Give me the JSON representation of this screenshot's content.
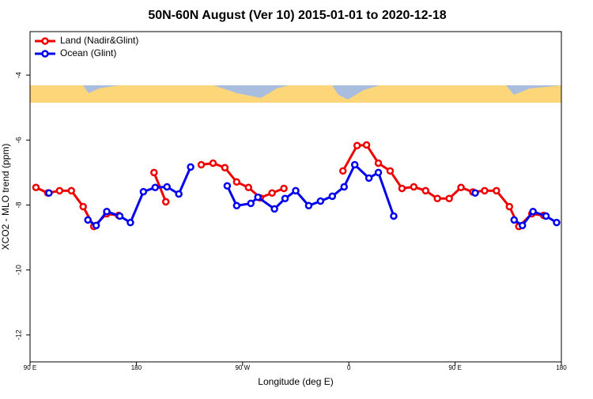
{
  "chart_data": {
    "type": "line",
    "title": "50N-60N August (Ver 10)   2015-01-01 to 2020-12-18",
    "x_label": "Longitude (deg E)",
    "y_label": "XCO2 - MLO trend (ppm)",
    "xlim": [
      90,
      540
    ],
    "ylim": [
      -12.83,
      -2.66
    ],
    "xticks": [
      {
        "value": 90,
        "label": "90 E"
      },
      180,
      {
        "value": 270,
        "label": "90 W"
      },
      {
        "value": 360,
        "label": "0"
      },
      {
        "value": 450,
        "label": "90 E"
      },
      {
        "value": 540,
        "label": "180"
      }
    ],
    "yticks": [
      -4,
      -6,
      -8,
      -10,
      -12
    ],
    "grid": false,
    "legend": "top-left",
    "series": [
      {
        "name": "Land (Nadir&Glint)",
        "color": "#ee0000",
        "x": [
          95,
          105,
          115,
          125,
          135,
          144,
          155,
          165,
          175,
          195,
          205,
          215,
          235,
          245,
          255,
          265,
          275,
          285,
          295,
          305,
          315,
          355,
          367,
          375,
          385,
          395,
          405,
          415,
          425,
          435,
          445,
          455,
          465,
          475,
          485,
          496,
          504,
          515,
          525
        ],
        "values": [
          -7.46,
          -7.63,
          -7.56,
          -7.56,
          -8.05,
          -8.66,
          -8.27,
          -8.32,
          null,
          -7.0,
          -7.9,
          null,
          -6.76,
          -6.71,
          -6.85,
          -7.29,
          -7.46,
          -7.78,
          -7.63,
          -7.49,
          null,
          -6.95,
          -6.17,
          -6.15,
          -6.71,
          -6.95,
          -7.49,
          -7.44,
          -7.56,
          -7.8,
          -7.8,
          -7.46,
          -7.6,
          -7.56,
          -7.56,
          -8.05,
          -8.66,
          -8.27,
          -8.32
        ]
      },
      {
        "name": "Ocean (Glint)",
        "color": "#0000ee",
        "x": [
          106,
          120,
          139,
          146,
          155,
          166,
          175,
          186,
          196,
          206,
          216,
          226,
          240,
          257,
          265,
          277,
          283,
          297,
          306,
          315,
          326,
          336,
          346,
          356,
          365,
          377,
          385,
          398,
          430,
          467,
          480,
          500,
          507,
          516,
          527,
          536
        ],
        "values": [
          -7.63,
          null,
          -8.46,
          -8.63,
          -8.2,
          -8.34,
          -8.54,
          -7.59,
          -7.46,
          -7.44,
          -7.66,
          -6.83,
          null,
          -7.41,
          -8.02,
          -7.95,
          -7.76,
          -8.12,
          -7.8,
          -7.56,
          -8.02,
          -7.88,
          -7.73,
          -7.44,
          -6.76,
          -7.17,
          -7.0,
          -8.34,
          null,
          -7.63,
          null,
          -8.46,
          -8.63,
          -8.2,
          -8.34,
          -8.54
        ]
      }
    ]
  }
}
